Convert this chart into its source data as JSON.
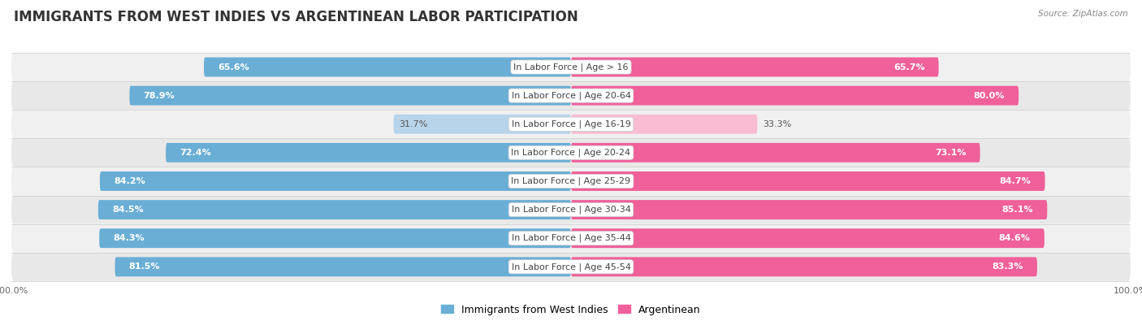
{
  "title": "IMMIGRANTS FROM WEST INDIES VS ARGENTINEAN LABOR PARTICIPATION",
  "source": "Source: ZipAtlas.com",
  "categories": [
    "In Labor Force | Age > 16",
    "In Labor Force | Age 20-64",
    "In Labor Force | Age 16-19",
    "In Labor Force | Age 20-24",
    "In Labor Force | Age 25-29",
    "In Labor Force | Age 30-34",
    "In Labor Force | Age 35-44",
    "In Labor Force | Age 45-54"
  ],
  "west_indies_values": [
    65.6,
    78.9,
    31.7,
    72.4,
    84.2,
    84.5,
    84.3,
    81.5
  ],
  "argentinean_values": [
    65.7,
    80.0,
    33.3,
    73.1,
    84.7,
    85.1,
    84.6,
    83.3
  ],
  "west_indies_color": "#6aaed6",
  "west_indies_color_light": "#b8d4ea",
  "argentinean_color": "#f0609a",
  "argentinean_color_light": "#f9bcd3",
  "row_bg_color": "#f0f0f0",
  "row_bg_color_alt": "#e8e8e8",
  "max_value": 100.0,
  "legend_west_indies": "Immigrants from West Indies",
  "legend_argentinean": "Argentinean",
  "title_fontsize": 12,
  "label_fontsize": 8,
  "value_fontsize": 8,
  "axis_label_fontsize": 8
}
